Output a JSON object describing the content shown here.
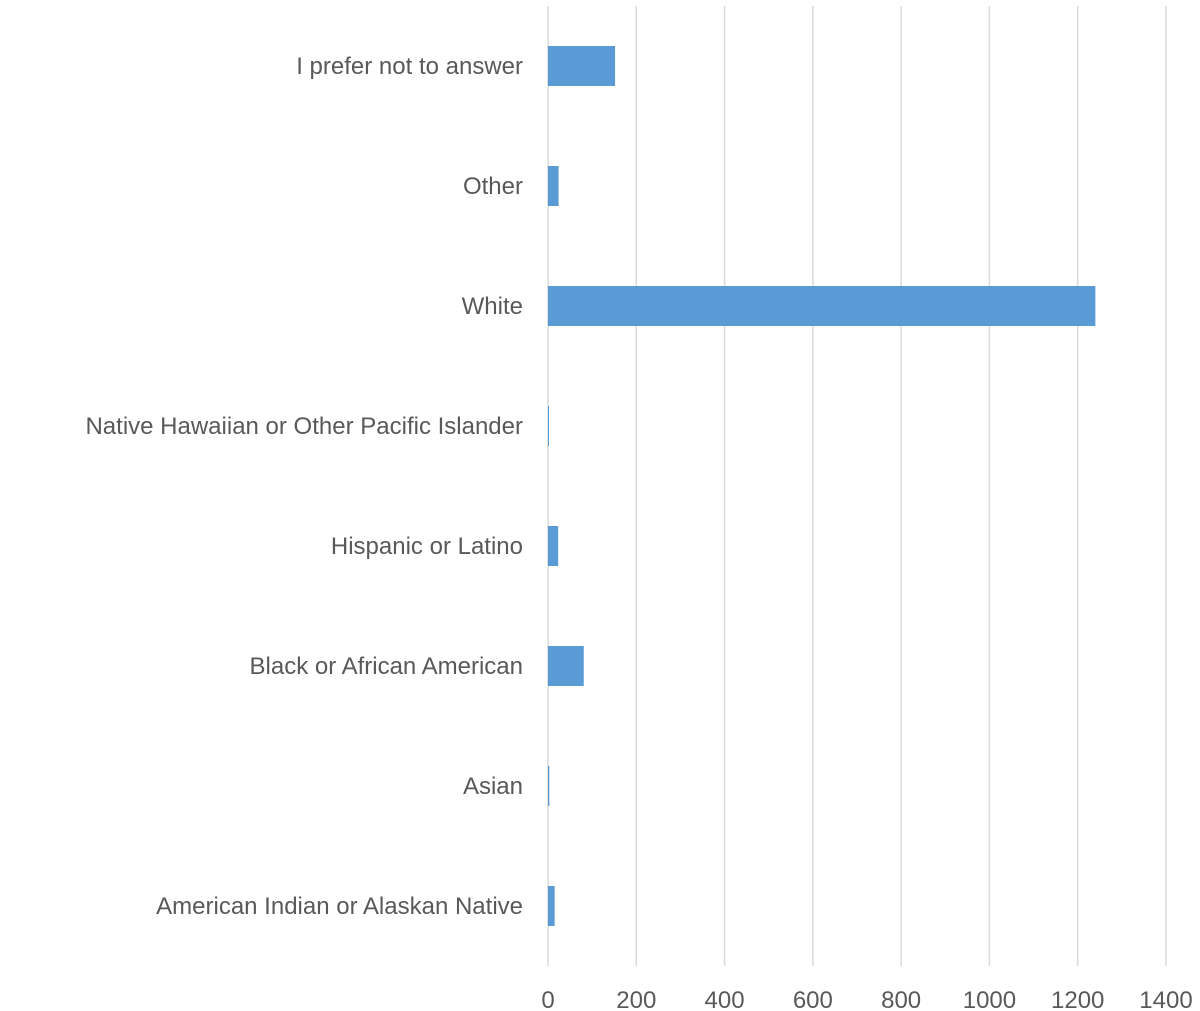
{
  "chart_data": {
    "type": "bar",
    "orientation": "horizontal",
    "categories": [
      "I prefer not to answer",
      "Other",
      "White",
      "Native Hawaiian or Other Pacific Islander",
      "Hispanic or Latino",
      "Black or African American",
      "Asian",
      "American Indian or Alaskan Native"
    ],
    "values": [
      152,
      24,
      1240,
      1,
      23,
      81,
      3,
      15
    ],
    "xlim": [
      0,
      1400
    ],
    "xticks": [
      "0",
      "200",
      "400",
      "600",
      "800",
      "1000",
      "1200",
      "1400"
    ],
    "grid": true,
    "legend": "none",
    "colors": {
      "bar": "#5b9bd5",
      "grid": "#d9d9d9",
      "text": "#595959"
    },
    "title": "",
    "xlabel": "",
    "ylabel": ""
  }
}
